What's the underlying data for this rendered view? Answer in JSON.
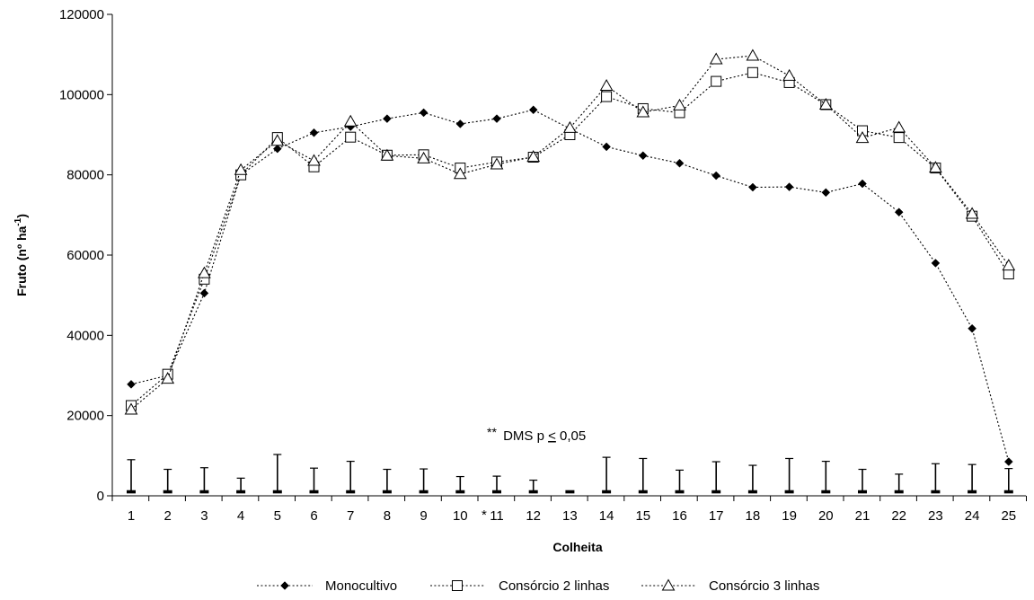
{
  "chart_data": {
    "type": "line",
    "xlabel": "Colheita",
    "ylabel_main": "Fruto (nº ha",
    "ylabel_sup": "-1",
    "ylabel_close": ")",
    "ylim": [
      0,
      120000
    ],
    "yticks": [
      "0",
      "20000",
      "40000",
      "60000",
      "80000",
      "100000",
      "120000"
    ],
    "categories": [
      "1",
      "2",
      "3",
      "4",
      "5",
      "6",
      "7",
      "8",
      "9",
      "10",
      "11",
      "12",
      "13",
      "14",
      "15",
      "16",
      "17",
      "18",
      "19",
      "20",
      "21",
      "22",
      "23",
      "24",
      "25"
    ],
    "series": [
      {
        "name": "Monocultivo",
        "marker": "diamond",
        "values": [
          27800,
          30000,
          50500,
          80000,
          86500,
          90500,
          92000,
          94000,
          95500,
          92700,
          94000,
          96200,
          91500,
          87000,
          84800,
          82900,
          79800,
          76900,
          77000,
          75600,
          77800,
          70700,
          58000,
          41700,
          8500
        ]
      },
      {
        "name": "Consórcio 2 linhas",
        "marker": "square",
        "values": [
          22500,
          30300,
          54000,
          80000,
          89300,
          82000,
          89400,
          84900,
          85000,
          81700,
          83200,
          84400,
          90000,
          99500,
          96500,
          95500,
          103300,
          105500,
          103000,
          97500,
          91000,
          89300,
          81700,
          69700,
          55300
        ]
      },
      {
        "name": "Consórcio 3 linhas",
        "marker": "triangle",
        "values": [
          21500,
          29200,
          55500,
          81200,
          88500,
          83500,
          93300,
          84800,
          84100,
          80200,
          82600,
          84500,
          91700,
          102200,
          95600,
          97300,
          108800,
          109700,
          104700,
          97500,
          89200,
          91800,
          81800,
          70300,
          57400
        ]
      }
    ],
    "dms_top": [
      9000,
      6600,
      7000,
      4400,
      10300,
      6900,
      8600,
      6600,
      6700,
      4800,
      4900,
      3900,
      1200,
      9600,
      9300,
      6400,
      8500,
      7600,
      9300,
      8600,
      6600,
      5400,
      8000,
      7800,
      6800
    ],
    "dms_base": 1000,
    "annotation": {
      "stars": "**",
      "prefix": "DMS p",
      "underlined": "<",
      "suffix": " 0,05"
    },
    "marker_note": "*",
    "grid": false,
    "legend_position": "bottom"
  }
}
